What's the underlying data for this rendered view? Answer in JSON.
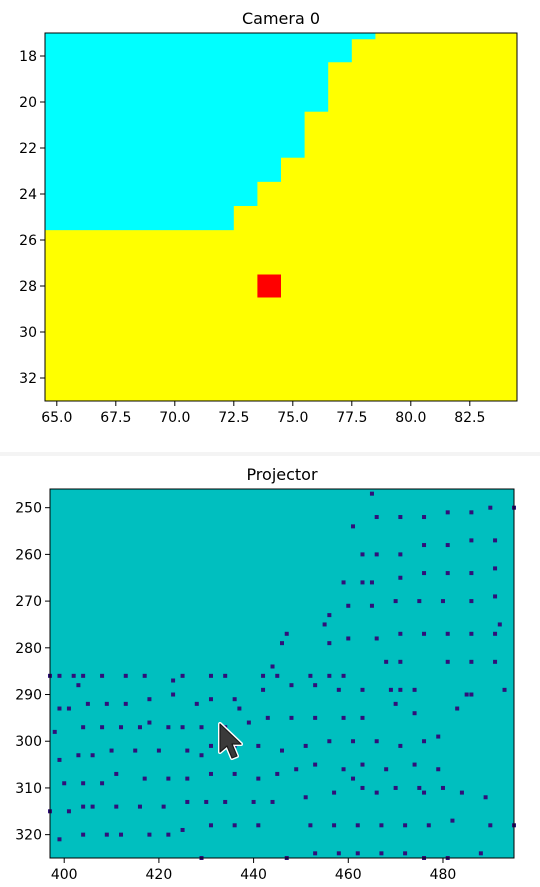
{
  "chart_data": [
    {
      "type": "heatmap",
      "title": "Camera 0",
      "xlabel": "",
      "ylabel": "",
      "xlim": [
        64.5,
        84.5
      ],
      "ylim": [
        33,
        17
      ],
      "xticks": [
        65.0,
        67.5,
        70.0,
        72.5,
        75.0,
        77.5,
        80.0,
        82.5
      ],
      "xtick_labels": [
        "65.0",
        "67.5",
        "70.0",
        "72.5",
        "75.0",
        "77.5",
        "80.0",
        "82.5"
      ],
      "yticks": [
        18,
        20,
        22,
        24,
        26,
        28,
        30,
        32
      ],
      "ytick_labels": [
        "18",
        "20",
        "22",
        "24",
        "26",
        "28",
        "30",
        "32"
      ],
      "colors": {
        "upper_region": "#00ffff",
        "lower_region": "#ffff00",
        "marker": "#ff0000"
      },
      "cyan_region_right_edge_by_row": [
        {
          "y_from": 17.0,
          "y_to": 17.25,
          "x_edge": 78.5
        },
        {
          "y_from": 17.25,
          "y_to": 18.25,
          "x_edge": 77.5
        },
        {
          "y_from": 18.25,
          "y_to": 20.4,
          "x_edge": 76.5
        },
        {
          "y_from": 20.4,
          "y_to": 22.4,
          "x_edge": 75.5
        },
        {
          "y_from": 22.4,
          "y_to": 23.45,
          "x_edge": 74.5
        },
        {
          "y_from": 23.45,
          "y_to": 24.5,
          "x_edge": 73.5
        },
        {
          "y_from": 24.5,
          "y_to": 25.55,
          "x_edge": 72.5
        }
      ],
      "marker": {
        "x": 74,
        "y": 28,
        "size": 1
      }
    },
    {
      "type": "heatmap",
      "title": "Projector",
      "xlabel": "",
      "ylabel": "",
      "xlim": [
        397,
        495
      ],
      "ylim": [
        325,
        246
      ],
      "xticks": [
        400,
        420,
        440,
        460,
        480
      ],
      "xtick_labels": [
        "400",
        "420",
        "440",
        "460",
        "480"
      ],
      "yticks": [
        250,
        260,
        270,
        280,
        290,
        300,
        310,
        320
      ],
      "ytick_labels": [
        "250",
        "260",
        "270",
        "280",
        "290",
        "300",
        "310",
        "320"
      ],
      "colors": {
        "background": "#00bfbf",
        "dots": "#30107a"
      },
      "dots": [
        [
          465,
          247
        ],
        [
          461,
          254
        ],
        [
          466,
          252
        ],
        [
          471,
          252
        ],
        [
          476,
          252
        ],
        [
          481,
          251
        ],
        [
          486,
          251
        ],
        [
          490,
          250
        ],
        [
          495,
          250
        ],
        [
          463,
          260
        ],
        [
          466,
          260
        ],
        [
          471,
          260
        ],
        [
          476,
          258
        ],
        [
          481,
          258
        ],
        [
          486,
          257
        ],
        [
          491,
          257
        ],
        [
          459,
          266
        ],
        [
          463,
          266
        ],
        [
          465,
          266
        ],
        [
          471,
          265
        ],
        [
          476,
          264
        ],
        [
          481,
          264
        ],
        [
          486,
          264
        ],
        [
          491,
          263
        ],
        [
          460,
          271
        ],
        [
          465,
          271
        ],
        [
          470,
          270
        ],
        [
          475,
          270
        ],
        [
          480,
          270
        ],
        [
          486,
          270
        ],
        [
          491,
          269
        ],
        [
          456,
          273
        ],
        [
          455,
          275
        ],
        [
          492,
          275
        ],
        [
          447,
          277
        ],
        [
          446,
          279
        ],
        [
          456,
          279
        ],
        [
          460,
          278
        ],
        [
          466,
          278
        ],
        [
          471,
          277
        ],
        [
          476,
          277
        ],
        [
          481,
          277
        ],
        [
          486,
          277
        ],
        [
          491,
          277
        ],
        [
          468,
          283
        ],
        [
          471,
          283
        ],
        [
          481,
          283
        ],
        [
          486,
          283
        ],
        [
          491,
          283
        ],
        [
          399,
          286
        ],
        [
          397,
          286
        ],
        [
          402,
          286
        ],
        [
          404,
          286
        ],
        [
          408,
          286
        ],
        [
          413,
          286
        ],
        [
          417,
          286
        ],
        [
          423,
          287
        ],
        [
          425,
          286
        ],
        [
          431,
          286
        ],
        [
          434,
          286
        ],
        [
          442,
          286
        ],
        [
          444,
          284
        ],
        [
          445,
          286
        ],
        [
          452,
          286
        ],
        [
          456,
          286
        ],
        [
          459,
          286
        ],
        [
          403,
          288
        ],
        [
          442,
          289
        ],
        [
          448,
          288
        ],
        [
          453,
          288
        ],
        [
          458,
          289
        ],
        [
          463,
          289
        ],
        [
          469,
          289
        ],
        [
          474,
          289
        ],
        [
          423,
          290
        ],
        [
          431,
          291
        ],
        [
          436,
          291
        ],
        [
          471,
          289
        ],
        [
          485,
          290
        ],
        [
          493,
          289
        ],
        [
          399,
          293
        ],
        [
          401,
          293
        ],
        [
          405,
          292
        ],
        [
          409,
          292
        ],
        [
          413,
          292
        ],
        [
          418,
          291
        ],
        [
          428,
          292
        ],
        [
          437,
          293
        ],
        [
          470,
          292
        ],
        [
          483,
          293
        ],
        [
          486,
          290
        ],
        [
          418,
          296
        ],
        [
          412,
          297
        ],
        [
          416,
          297
        ],
        [
          422,
          297
        ],
        [
          425,
          297
        ],
        [
          429,
          297
        ],
        [
          434,
          297
        ],
        [
          443,
          295
        ],
        [
          448,
          295
        ],
        [
          453,
          295
        ],
        [
          459,
          295
        ],
        [
          463,
          295
        ],
        [
          474,
          294
        ],
        [
          398,
          298
        ],
        [
          404,
          297
        ],
        [
          408,
          297
        ],
        [
          439,
          296
        ],
        [
          479,
          299
        ],
        [
          410,
          302
        ],
        [
          415,
          302
        ],
        [
          420,
          302
        ],
        [
          426,
          302
        ],
        [
          431,
          301
        ],
        [
          436,
          301
        ],
        [
          441,
          301
        ],
        [
          446,
          302
        ],
        [
          451,
          301
        ],
        [
          456,
          300
        ],
        [
          461,
          300
        ],
        [
          466,
          300
        ],
        [
          471,
          301
        ],
        [
          476,
          300
        ],
        [
          403,
          303
        ],
        [
          406,
          303
        ],
        [
          399,
          304
        ],
        [
          429,
          303
        ],
        [
          453,
          305
        ],
        [
          459,
          306
        ],
        [
          463,
          305
        ],
        [
          468,
          306
        ],
        [
          474,
          305
        ],
        [
          479,
          306
        ],
        [
          411,
          307
        ],
        [
          417,
          308
        ],
        [
          422,
          308
        ],
        [
          426,
          308
        ],
        [
          431,
          307
        ],
        [
          436,
          307
        ],
        [
          441,
          308
        ],
        [
          445,
          307
        ],
        [
          449,
          306
        ],
        [
          400,
          309
        ],
        [
          404,
          309
        ],
        [
          408,
          309
        ],
        [
          461,
          308
        ],
        [
          463,
          310
        ],
        [
          470,
          310
        ],
        [
          475,
          310
        ],
        [
          480,
          310
        ],
        [
          451,
          312
        ],
        [
          457,
          311
        ],
        [
          466,
          311
        ],
        [
          476,
          311
        ],
        [
          484,
          311
        ],
        [
          489,
          312
        ],
        [
          404,
          314
        ],
        [
          406,
          314
        ],
        [
          411,
          314
        ],
        [
          416,
          314
        ],
        [
          421,
          314
        ],
        [
          426,
          313
        ],
        [
          430,
          313
        ],
        [
          434,
          313
        ],
        [
          440,
          313
        ],
        [
          444,
          313
        ],
        [
          397,
          315
        ],
        [
          401,
          315
        ],
        [
          425,
          319
        ],
        [
          431,
          318
        ],
        [
          436,
          318
        ],
        [
          441,
          318
        ],
        [
          452,
          318
        ],
        [
          457,
          318
        ],
        [
          462,
          318
        ],
        [
          467,
          318
        ],
        [
          472,
          318
        ],
        [
          477,
          318
        ],
        [
          482,
          317
        ],
        [
          490,
          318
        ],
        [
          495,
          318
        ],
        [
          399,
          321
        ],
        [
          404,
          320
        ],
        [
          409,
          320
        ],
        [
          412,
          320
        ],
        [
          418,
          320
        ],
        [
          422,
          320
        ],
        [
          429,
          325
        ],
        [
          447,
          325
        ],
        [
          453,
          324
        ],
        [
          458,
          324
        ],
        [
          462,
          324
        ],
        [
          467,
          324
        ],
        [
          472,
          324
        ],
        [
          476,
          325
        ],
        [
          481,
          325
        ],
        [
          488,
          324
        ]
      ]
    }
  ]
}
